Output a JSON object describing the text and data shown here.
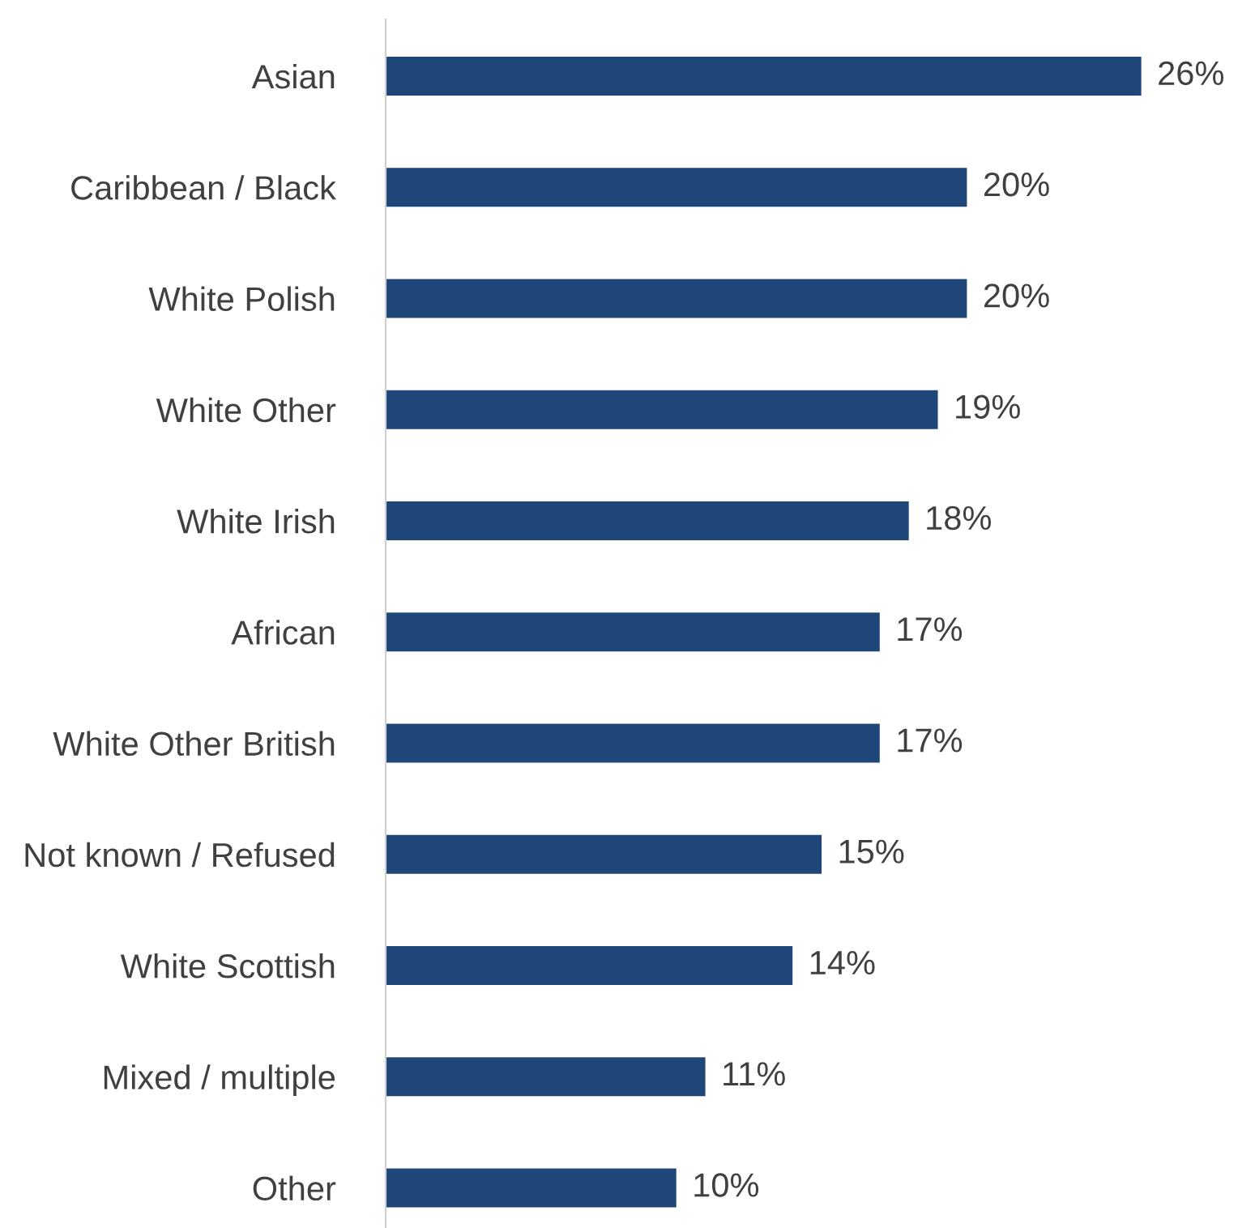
{
  "chart_data": {
    "type": "bar",
    "orientation": "horizontal",
    "categories": [
      "Asian",
      "Caribbean / Black",
      "White Polish",
      "White Other",
      "White Irish",
      "African",
      "White Other British",
      "Not known / Refused",
      "White Scottish",
      "Mixed / multiple",
      "Other"
    ],
    "values": [
      26,
      20,
      20,
      19,
      18,
      17,
      17,
      15,
      14,
      11,
      10
    ],
    "value_labels": [
      "26%",
      "20%",
      "20%",
      "19%",
      "18%",
      "17%",
      "17%",
      "15%",
      "14%",
      "11%",
      "10%"
    ],
    "color": "#1f4679",
    "grid": false,
    "legend": false
  }
}
